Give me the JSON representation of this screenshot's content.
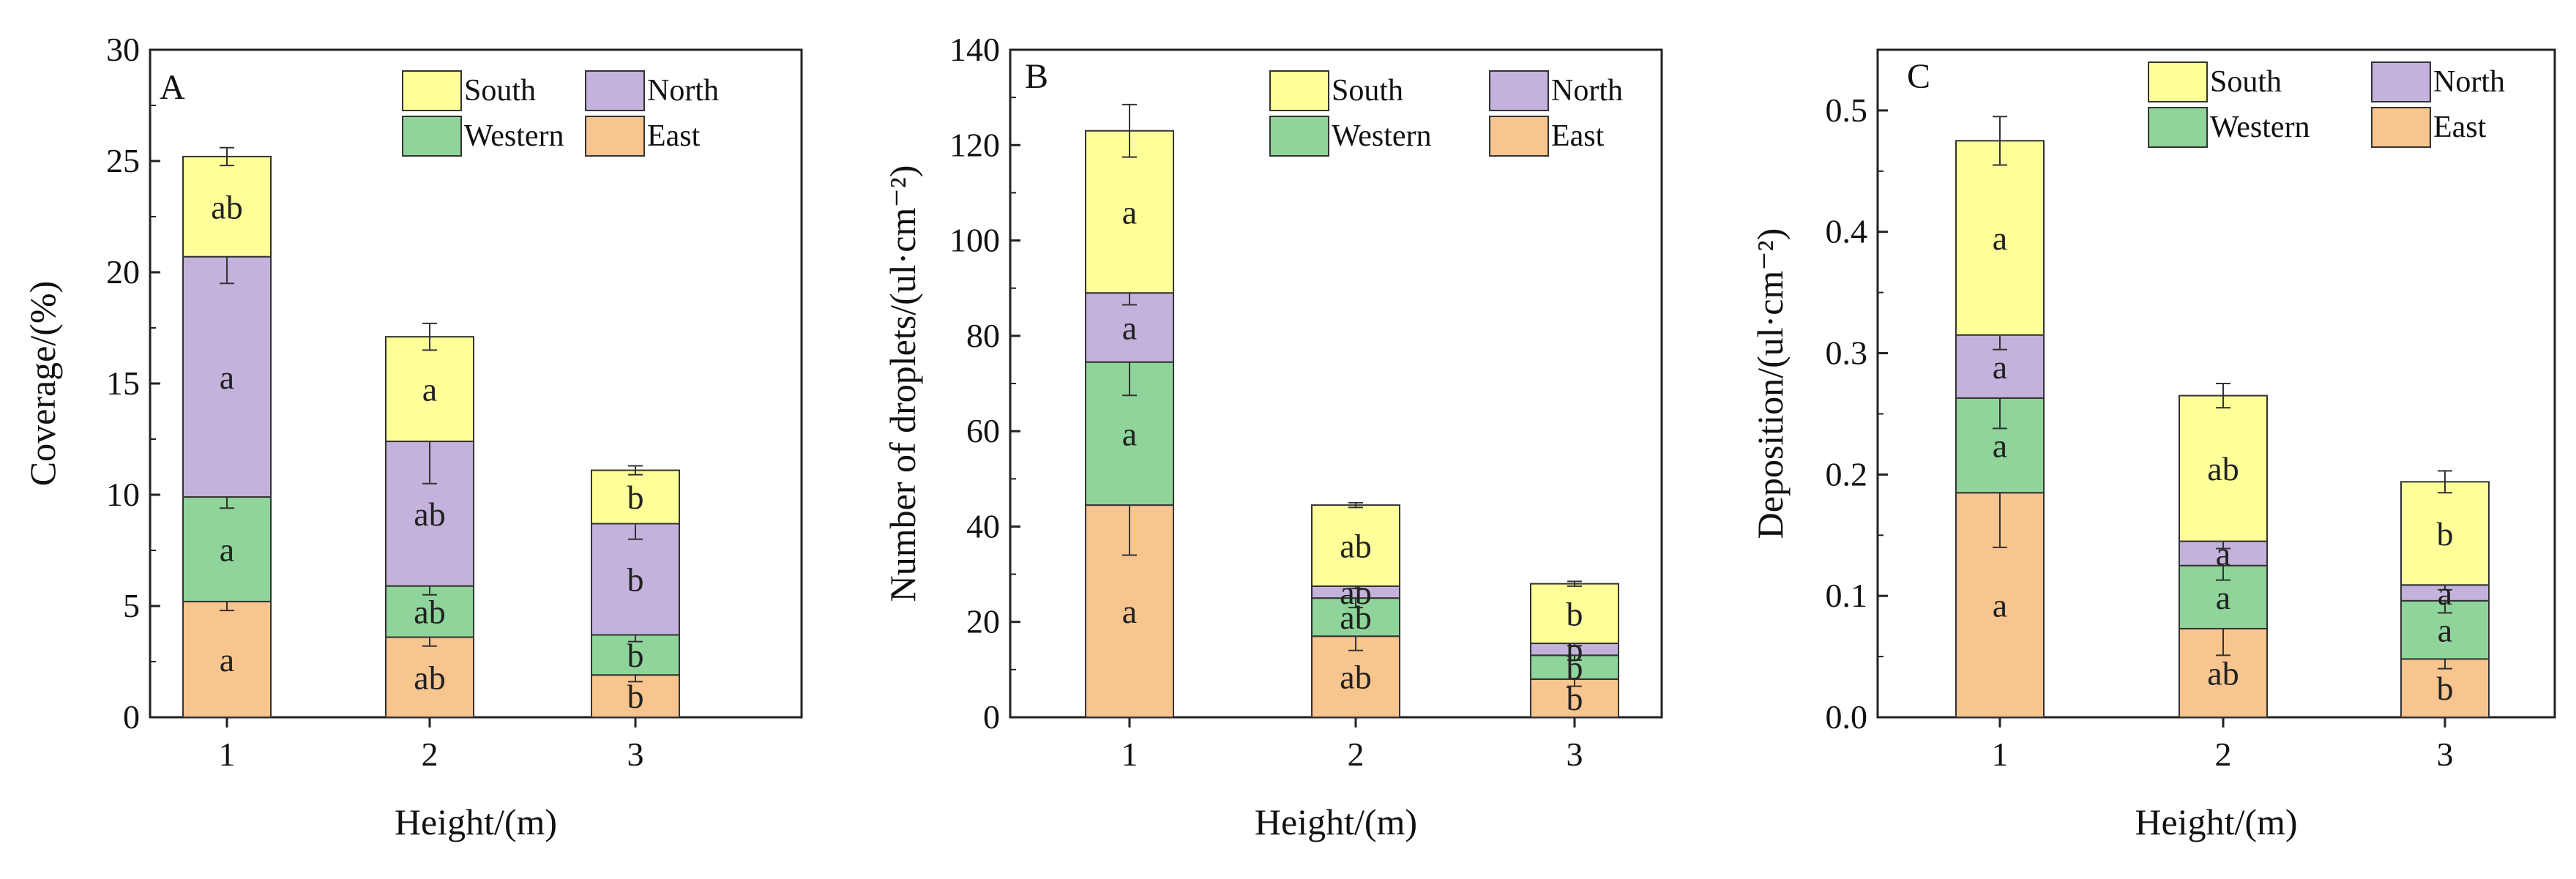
{
  "colors": {
    "East": "#f9c58e",
    "Western": "#8fd49a",
    "North": "#c3b3dc",
    "South": "#ffff9a",
    "stroke": "#333333"
  },
  "chart_data": [
    {
      "type": "bar",
      "stacked": true,
      "panel": "A",
      "categories": [
        "1",
        "2",
        "3"
      ],
      "xlabel": "Height/(m)",
      "ylabel": "Coverage/(%)",
      "ylim": [
        0,
        30
      ],
      "yticks": [
        "0",
        "5",
        "10",
        "15",
        "20",
        "25",
        "30"
      ],
      "legend": [
        "South",
        "North",
        "Western",
        "East"
      ],
      "series": [
        {
          "name": "East",
          "values": [
            5.2,
            3.6,
            1.9
          ],
          "errors": [
            0.4,
            0.4,
            0.3
          ],
          "letters": [
            "a",
            "ab",
            "b"
          ]
        },
        {
          "name": "Western",
          "values": [
            4.7,
            2.3,
            1.8
          ],
          "errors": [
            0.5,
            0.4,
            0.3
          ],
          "letters": [
            "a",
            "ab",
            "b"
          ]
        },
        {
          "name": "North",
          "values": [
            10.8,
            6.5,
            5.0
          ],
          "errors": [
            1.2,
            1.9,
            0.7
          ],
          "letters": [
            "a",
            "ab",
            "b"
          ]
        },
        {
          "name": "South",
          "values": [
            4.5,
            4.7,
            2.4
          ],
          "errors": [
            0.4,
            0.6,
            0.2
          ],
          "letters": [
            "ab",
            "a",
            "b"
          ]
        }
      ]
    },
    {
      "type": "bar",
      "stacked": true,
      "panel": "B",
      "categories": [
        "1",
        "2",
        "3"
      ],
      "xlabel": "Height/(m)",
      "ylabel": "Number of droplets/(ul·cm⁻²)",
      "ylim": [
        0,
        140
      ],
      "yticks": [
        "0",
        "20",
        "40",
        "60",
        "80",
        "100",
        "120",
        "140"
      ],
      "legend": [
        "South",
        "North",
        "Western",
        "East"
      ],
      "series": [
        {
          "name": "East",
          "values": [
            44.5,
            17.0,
            8.0
          ],
          "errors": [
            10.5,
            3.0,
            1.5
          ],
          "letters": [
            "a",
            "ab",
            "b"
          ]
        },
        {
          "name": "Western",
          "values": [
            30.0,
            8.0,
            5.0
          ],
          "errors": [
            7.0,
            2.0,
            1.0
          ],
          "letters": [
            "a",
            "ab",
            "b"
          ]
        },
        {
          "name": "North",
          "values": [
            14.5,
            2.5,
            2.5
          ],
          "errors": [
            2.5,
            0.5,
            0.5
          ],
          "letters": [
            "a",
            "ab",
            "b"
          ]
        },
        {
          "name": "South",
          "values": [
            34.0,
            17.0,
            12.5
          ],
          "errors": [
            5.5,
            0.5,
            0.5
          ],
          "letters": [
            "a",
            "ab",
            "b"
          ]
        }
      ]
    },
    {
      "type": "bar",
      "stacked": true,
      "panel": "C",
      "categories": [
        "1",
        "2",
        "3"
      ],
      "xlabel": "Height/(m)",
      "ylabel": "Deposition/(ul·cm⁻²)",
      "ylim": [
        0,
        0.55
      ],
      "yticks": [
        "0.0",
        "0.1",
        "0.2",
        "0.3",
        "0.4",
        "0.5"
      ],
      "legend": [
        "South",
        "North",
        "Western",
        "East"
      ],
      "series": [
        {
          "name": "East",
          "values": [
            0.185,
            0.073,
            0.048
          ],
          "errors": [
            0.045,
            0.022,
            0.008
          ],
          "letters": [
            "a",
            "ab",
            "b"
          ]
        },
        {
          "name": "Western",
          "values": [
            0.078,
            0.052,
            0.048
          ],
          "errors": [
            0.025,
            0.012,
            0.01
          ],
          "letters": [
            "a",
            "a",
            "a"
          ]
        },
        {
          "name": "North",
          "values": [
            0.052,
            0.02,
            0.013
          ],
          "errors": [
            0.012,
            0.006,
            0.004
          ],
          "letters": [
            "a",
            "a",
            "a"
          ]
        },
        {
          "name": "South",
          "values": [
            0.16,
            0.12,
            0.085
          ],
          "errors": [
            0.02,
            0.01,
            0.009
          ],
          "letters": [
            "a",
            "ab",
            "b"
          ]
        }
      ]
    }
  ]
}
